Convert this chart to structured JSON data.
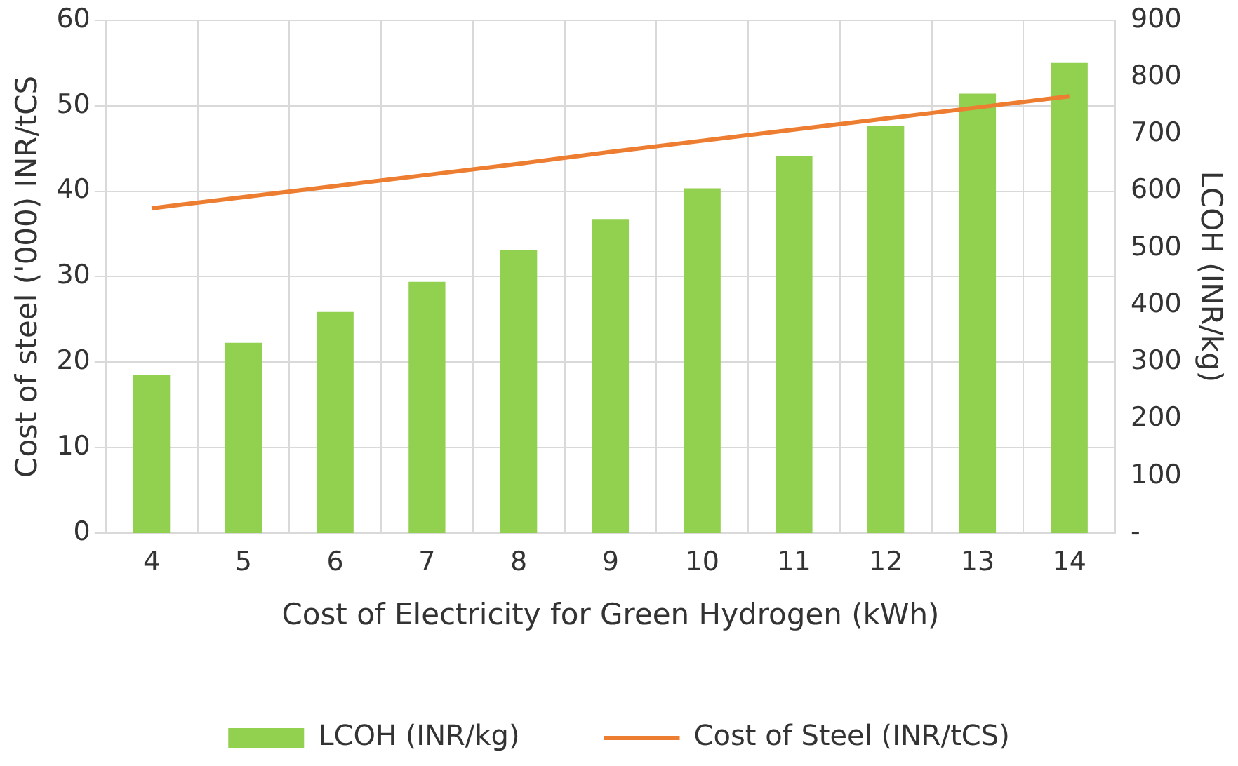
{
  "chart_data": {
    "type": "bar",
    "xlabel": "Cost of Electricity for Green Hydrogen (kWh)",
    "ylabel": "Cost of steel ('000) INR/tCS",
    "y2label": "LCOH (INR/kg)",
    "categories": [
      "4",
      "5",
      "6",
      "7",
      "8",
      "9",
      "10",
      "11",
      "12",
      "13",
      "14"
    ],
    "series": [
      {
        "name": "LCOH (INR/kg)",
        "axis": "y2",
        "color": "#92d050",
        "values": [
          278,
          334,
          388,
          441,
          497,
          551,
          605,
          661,
          715,
          771,
          825
        ]
      },
      {
        "name": "Cost of Steel (INR/tCS)",
        "type": "line",
        "color": "#ed7d31",
        "values": [
          38.0,
          39.3,
          40.6,
          41.9,
          43.2,
          44.6,
          45.9,
          47.2,
          48.5,
          49.8,
          51.1
        ]
      }
    ],
    "ylim": [
      0,
      60
    ],
    "yticks": [
      0,
      10,
      20,
      30,
      40,
      50,
      60
    ],
    "y2lim": [
      0,
      900
    ],
    "y2ticks": [
      {
        "value": 0,
        "label": "-"
      },
      100,
      200,
      300,
      400,
      500,
      600,
      700,
      800,
      900
    ],
    "grid": true,
    "legend": "bottom",
    "marker": "none",
    "line_style": "solid"
  }
}
